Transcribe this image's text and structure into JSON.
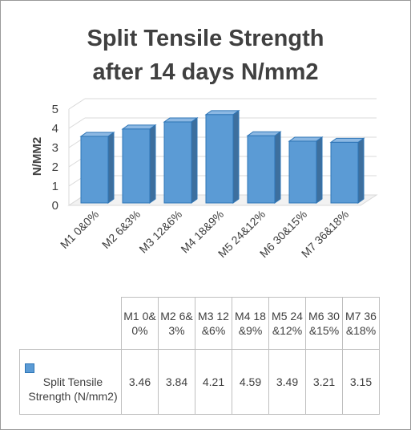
{
  "chart_data": {
    "type": "bar",
    "title": [
      "Split Tensile Strength",
      "after  14 days N/mm2"
    ],
    "ylabel": "N/MM2",
    "ylim": [
      0,
      5
    ],
    "yticks": [
      0,
      1,
      2,
      3,
      4,
      5
    ],
    "categories": [
      "M1 0&0%",
      "M2 6&3%",
      "M3 12&6%",
      "M4 18&9%",
      "M5 24&12%",
      "M6 30&15%",
      "M7 36&18%"
    ],
    "series": [
      {
        "name": "Split Tensile Strength (N/mm2)",
        "values": [
          3.46,
          3.84,
          4.21,
          4.59,
          3.49,
          3.21,
          3.15
        ]
      }
    ],
    "value_labels": [
      "3.46",
      "3.84",
      "4.21",
      "4.59",
      "3.49",
      "3.21",
      "3.15"
    ],
    "grid": true,
    "legend": "data-table",
    "colors": {
      "bar_front": "#5b9bd5",
      "bar_side": "#3d6f9e",
      "bar_top": "#8cb8e3",
      "bar_edge": "#2e75b6"
    }
  }
}
